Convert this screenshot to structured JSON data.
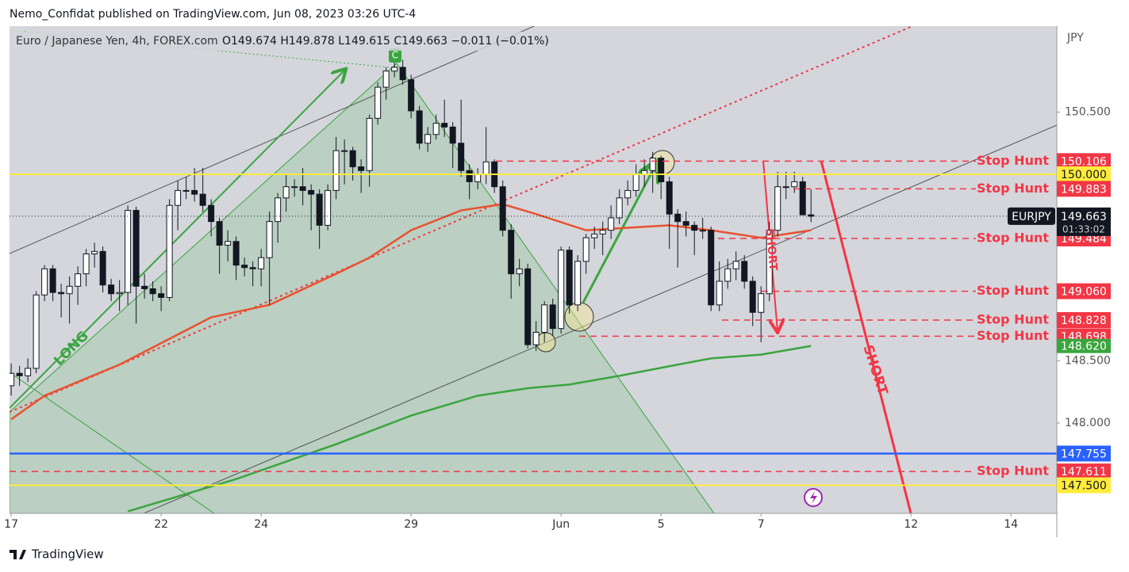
{
  "chart_data": {
    "type": "candlestick",
    "header": "Nemo_Confidat published on TradingView.com, Jun 08, 2023 03:26 UTC-4",
    "symbol_title": "Euro / Japanese Yen, 4h, FOREX.com",
    "legend_ohlc": "O149.674  H149.878  L149.615  C149.663  −0.011  (−0.01%)",
    "currency": "JPY",
    "footer": "TradingView",
    "marker": "C",
    "annotations": [
      "LONG",
      "SHORT",
      "SHORT"
    ],
    "up_color": "#ffffff",
    "down_color": "#131722",
    "open": [
      148.3,
      148.4,
      148.38,
      148.44,
      149.03,
      149.24,
      149.05,
      149.04,
      149.1,
      149.2,
      149.36,
      149.38,
      149.11,
      149.04,
      149.05,
      149.71,
      149.1,
      149.08,
      149.04,
      149.01,
      149.75,
      149.87,
      149.87,
      149.84,
      149.75,
      149.62,
      149.43,
      149.46,
      149.27,
      149.25,
      149.24,
      149.33,
      149.62,
      149.81,
      149.9,
      149.9,
      149.87,
      149.84,
      149.59,
      149.87,
      150.19,
      150.19,
      150.06,
      150.03,
      150.45,
      150.7,
      150.83,
      150.86,
      150.76,
      150.51,
      150.25,
      150.32,
      150.41,
      150.38,
      150.25,
      150.03,
      149.94,
      150.0,
      150.1,
      149.9,
      149.55,
      149.2,
      149.24,
      148.63,
      148.73,
      148.95,
      148.76,
      149.39,
      148.95,
      149.3,
      149.49,
      149.52,
      149.55,
      149.65,
      149.81,
      149.87,
      150.0,
      150.03,
      150.13,
      149.94,
      149.68,
      149.62,
      149.59,
      149.55,
      149.55,
      148.95,
      149.14,
      149.24,
      149.3,
      149.14,
      148.89,
      149.04,
      149.55,
      149.9,
      149.9,
      149.94,
      149.674
    ],
    "high": [
      148.48,
      148.46,
      148.52,
      149.06,
      149.27,
      149.27,
      149.12,
      149.18,
      149.26,
      149.4,
      149.45,
      149.42,
      149.16,
      149.15,
      149.75,
      149.74,
      149.2,
      149.14,
      149.1,
      149.8,
      149.95,
      149.98,
      150.05,
      150.05,
      149.8,
      149.65,
      149.55,
      149.5,
      149.33,
      149.3,
      149.4,
      149.7,
      149.85,
      150.0,
      149.96,
      150.05,
      149.92,
      149.88,
      149.92,
      150.3,
      150.28,
      150.22,
      150.12,
      150.48,
      150.74,
      150.86,
      150.93,
      150.92,
      150.8,
      150.55,
      150.38,
      150.48,
      150.6,
      150.42,
      150.6,
      150.08,
      150.05,
      150.38,
      150.12,
      149.95,
      149.6,
      149.32,
      149.28,
      148.82,
      148.98,
      149.0,
      149.42,
      149.42,
      149.35,
      149.52,
      149.58,
      149.62,
      149.75,
      149.88,
      149.95,
      150.08,
      150.12,
      150.18,
      150.15,
      149.98,
      149.72,
      149.7,
      149.62,
      149.65,
      149.58,
      149.3,
      149.32,
      149.38,
      149.35,
      149.18,
      149.1,
      149.62,
      150.02,
      150.02,
      150.02,
      149.98,
      149.878
    ],
    "low": [
      148.22,
      148.3,
      148.33,
      148.4,
      148.98,
      148.98,
      148.85,
      148.8,
      148.95,
      149.1,
      149.25,
      149.05,
      148.98,
      148.9,
      148.95,
      148.8,
      149.0,
      148.98,
      148.9,
      148.98,
      149.55,
      149.8,
      149.78,
      149.7,
      149.5,
      149.2,
      149.3,
      149.15,
      149.18,
      149.1,
      149.1,
      148.95,
      149.45,
      149.7,
      149.82,
      149.75,
      149.55,
      149.4,
      149.55,
      149.8,
      149.92,
      149.95,
      149.85,
      149.9,
      150.4,
      150.6,
      150.78,
      150.72,
      150.45,
      150.2,
      150.18,
      150.28,
      150.3,
      150.05,
      149.98,
      149.8,
      149.88,
      149.92,
      149.85,
      149.5,
      149.0,
      149.1,
      148.6,
      148.58,
      148.65,
      148.7,
      148.72,
      148.88,
      148.9,
      149.2,
      149.4,
      149.35,
      149.48,
      149.6,
      149.75,
      149.82,
      149.9,
      149.85,
      149.8,
      149.4,
      149.25,
      149.5,
      149.35,
      149.48,
      148.9,
      148.9,
      149.08,
      149.15,
      149.08,
      148.78,
      148.65,
      148.98,
      149.5,
      149.8,
      149.85,
      149.68,
      149.615
    ],
    "close": [
      148.4,
      148.38,
      148.44,
      149.03,
      149.24,
      149.05,
      149.04,
      149.1,
      149.2,
      149.36,
      149.38,
      149.11,
      149.04,
      149.05,
      149.71,
      149.1,
      149.08,
      149.04,
      149.01,
      149.75,
      149.87,
      149.87,
      149.84,
      149.75,
      149.62,
      149.43,
      149.46,
      149.27,
      149.25,
      149.24,
      149.33,
      149.62,
      149.81,
      149.9,
      149.9,
      149.87,
      149.84,
      149.59,
      149.87,
      150.19,
      150.19,
      150.06,
      150.03,
      150.45,
      150.7,
      150.83,
      150.86,
      150.76,
      150.51,
      150.25,
      150.32,
      150.41,
      150.38,
      150.25,
      150.03,
      149.94,
      150.0,
      150.1,
      149.9,
      149.55,
      149.2,
      149.24,
      148.63,
      148.73,
      148.95,
      148.76,
      149.39,
      148.95,
      149.3,
      149.49,
      149.52,
      149.55,
      149.65,
      149.81,
      149.87,
      150.0,
      150.03,
      150.13,
      149.94,
      149.68,
      149.62,
      149.59,
      149.55,
      149.55,
      148.95,
      149.14,
      149.24,
      149.3,
      149.14,
      148.89,
      149.04,
      149.55,
      149.9,
      149.9,
      149.94,
      149.674,
      149.663
    ],
    "xlim": [
      -0.2,
      125.5
    ],
    "xticks": [
      {
        "value": 0,
        "label": "17"
      },
      {
        "value": 18,
        "label": "22"
      },
      {
        "value": 30,
        "label": "24"
      },
      {
        "value": 48,
        "label": "29"
      },
      {
        "value": 66,
        "label": "Jun"
      },
      {
        "value": 78,
        "label": "5"
      },
      {
        "value": 90,
        "label": "7"
      },
      {
        "value": 108,
        "label": "12"
      },
      {
        "value": 120,
        "label": "14"
      }
    ],
    "ylim": [
      147.274,
      151.191
    ],
    "yticks": [
      {
        "value": 150.5,
        "label": "150.500"
      },
      {
        "value": 148.5,
        "label": "148.500"
      },
      {
        "value": 148,
        "label": "148.000"
      }
    ],
    "indicators": [
      {
        "color": "#e8522f",
        "x": [
          0,
          4,
          13,
          24,
          31,
          39,
          43,
          48,
          54,
          59,
          63,
          69,
          74,
          79,
          84,
          90,
          96
        ],
        "values": [
          148.03,
          148.22,
          148.47,
          148.85,
          148.95,
          149.2,
          149.33,
          149.55,
          149.71,
          149.76,
          149.68,
          149.55,
          149.57,
          149.59,
          149.55,
          149.49,
          149.55
        ]
      },
      {
        "color": "#3aa53f",
        "x": [
          14,
          27,
          39,
          48,
          56,
          62,
          67,
          73,
          80,
          84,
          90,
          96
        ],
        "values": [
          147.29,
          147.55,
          147.83,
          148.06,
          148.22,
          148.28,
          148.31,
          148.38,
          148.47,
          148.52,
          148.55,
          148.62
        ],
        "last_label": "148.620"
      }
    ],
    "levels": [
      {
        "value": 150.106,
        "text": "Stop Hunt",
        "color": "#f23645",
        "style": "dashed"
      },
      {
        "value": 150,
        "label": "150.000",
        "color": "#ffeb3b",
        "style": "solid"
      },
      {
        "value": 149.883,
        "text": "Stop Hunt",
        "color": "#f23645",
        "style": "dashed"
      },
      {
        "value": 149.484,
        "text": "Stop Hunt",
        "color": "#f23645",
        "style": "dashed"
      },
      {
        "value": 149.06,
        "label": "149.060",
        "text": "Stop Hunt",
        "color": "#f23645",
        "style": "dashed"
      },
      {
        "value": 148.828,
        "text": "Stop Hunt",
        "color": "#f23645",
        "style": "dashed"
      },
      {
        "value": 148.698,
        "text": "Stop Hunt",
        "color": "#f23645",
        "style": "dashed"
      },
      {
        "value": 147.755,
        "color": "#2962ff",
        "style": "solid"
      },
      {
        "value": 147.611,
        "text": "Stop Hunt",
        "color": "#f23645",
        "style": "dashed"
      },
      {
        "value": 147.5,
        "label": "147.500",
        "color": "#ffeb3b",
        "style": "solid"
      }
    ],
    "last_price": {
      "value": 149.663,
      "symbol": "EURJPY",
      "countdown": "01:33:02"
    }
  }
}
